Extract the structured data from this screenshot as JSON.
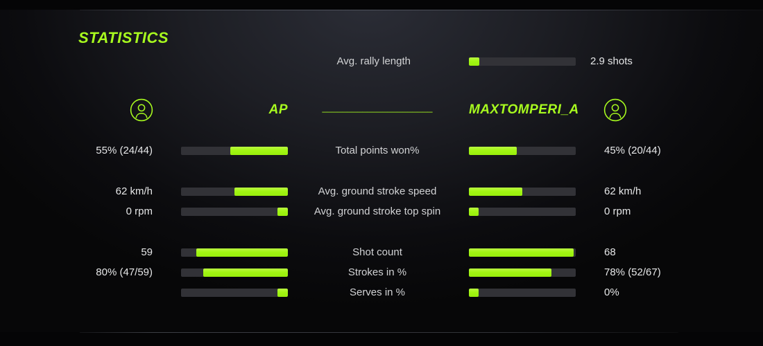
{
  "colors": {
    "accent": "#a2f513",
    "accent_bright": "#baf941",
    "bar_background": "#323237",
    "value_text": "#e6e7e8",
    "label_text": "#d2d3d5",
    "page_background": "#0c0c0f"
  },
  "title": "STATISTICS",
  "rally": {
    "label": "Avg. rally length",
    "value": "2.9 shots",
    "fill": 10
  },
  "header": {
    "left_player": "AP",
    "right_player": "MAXTOMPERI_A",
    "divider": "______________________",
    "left_avatar_icon": "user-icon",
    "right_avatar_icon": "user-icon"
  },
  "rows": [
    {
      "label": "Total points won%",
      "left": {
        "value": "55% (24/44)",
        "fill": 54
      },
      "right": {
        "value": "45% (20/44)",
        "fill": 45
      }
    },
    {
      "label": "Avg. ground stroke speed",
      "left": {
        "value": "62 km/h",
        "fill": 50
      },
      "right": {
        "value": "62 km/h",
        "fill": 50
      }
    },
    {
      "label": "Avg. ground stroke top spin",
      "left": {
        "value": "0 rpm",
        "fill": 10
      },
      "right": {
        "value": "0 rpm",
        "fill": 9
      }
    },
    {
      "label": "Shot count",
      "left": {
        "value": "59",
        "fill": 86
      },
      "right": {
        "value": "68",
        "fill": 98
      }
    },
    {
      "label": "Strokes in %",
      "left": {
        "value": "80% (47/59)",
        "fill": 79
      },
      "right": {
        "value": "78% (52/67)",
        "fill": 77
      }
    },
    {
      "label": "Serves in %",
      "left": {
        "value": "",
        "fill": 10
      },
      "right": {
        "value": "0%",
        "fill": 9
      }
    }
  ]
}
